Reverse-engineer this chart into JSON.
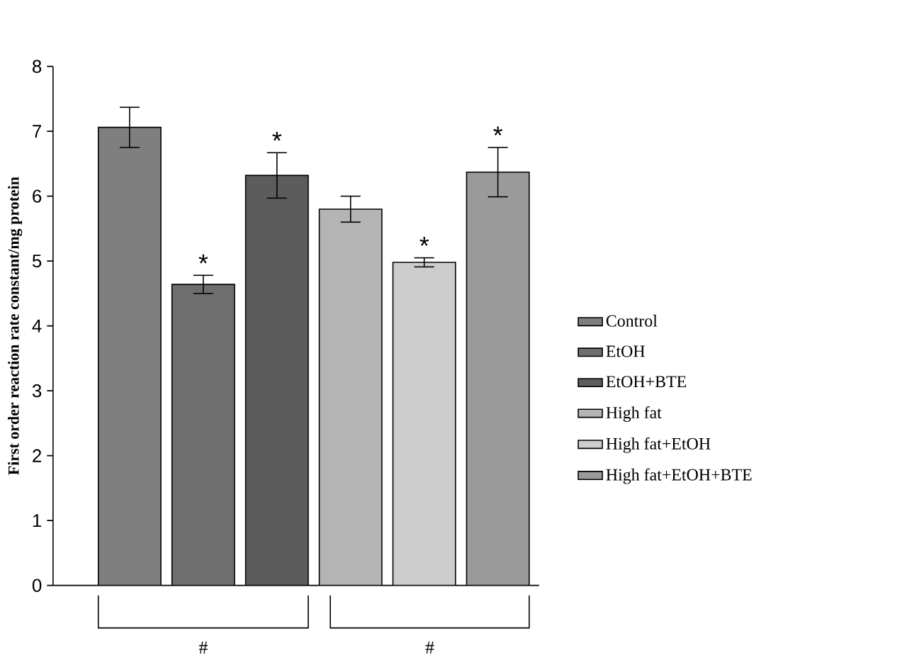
{
  "chart_data": {
    "type": "bar",
    "ylabel": "First order reaction rate constant/mg  protein",
    "categories": [
      null
    ],
    "ylim": [
      0,
      8
    ],
    "yticks": [
      0,
      1,
      2,
      3,
      4,
      5,
      6,
      7,
      8
    ],
    "legend": "right",
    "annotations": [
      "#",
      "#"
    ],
    "series": [
      {
        "name": "Control",
        "color": "#7f7f7f",
        "values": [
          7.06
        ],
        "errors": [
          0.31
        ]
      },
      {
        "name": "EtOH",
        "color": "#6e6e6e",
        "values": [
          4.64
        ],
        "errors": [
          0.14
        ],
        "value_labels": [
          "*"
        ]
      },
      {
        "name": "EtOH+BTE",
        "color": "#5c5c5c",
        "values": [
          6.32
        ],
        "errors": [
          0.35
        ],
        "value_labels": [
          "*"
        ]
      },
      {
        "name": "High fat",
        "color": "#b4b4b4",
        "values": [
          5.8
        ],
        "errors": [
          0.2
        ]
      },
      {
        "name": "High fat+EtOH",
        "color": "#cdcdcd",
        "values": [
          4.98
        ],
        "errors": [
          0.07
        ],
        "value_labels": [
          "*"
        ]
      },
      {
        "name": "High fat+EtOH+BTE",
        "color": "#9a9a9a",
        "values": [
          6.37
        ],
        "errors": [
          0.38
        ],
        "value_labels": [
          "*"
        ]
      }
    ]
  }
}
